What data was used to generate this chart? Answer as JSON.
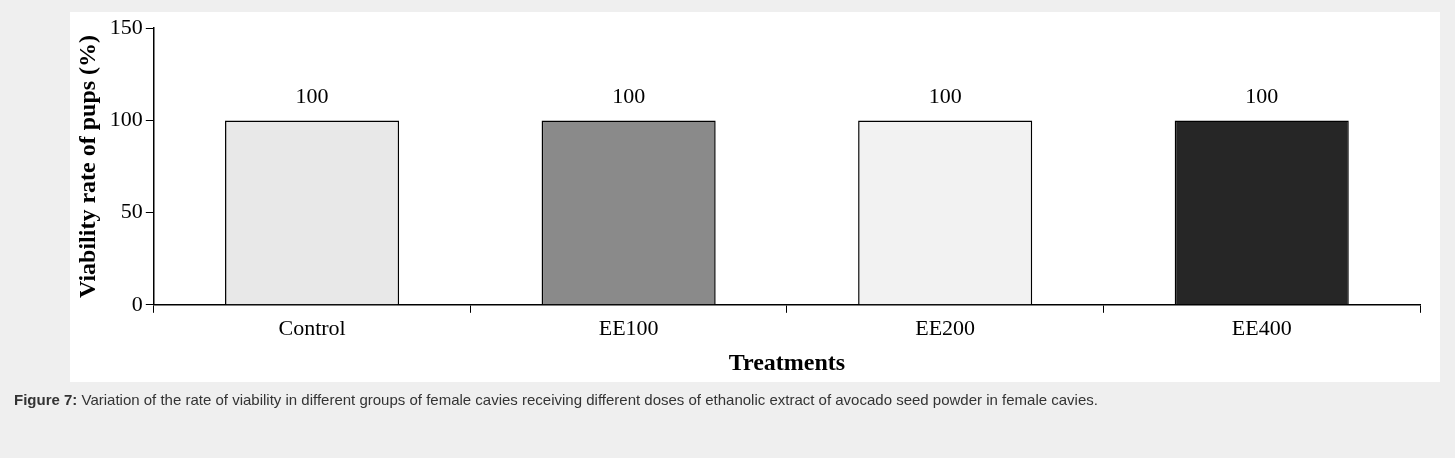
{
  "chart_data": {
    "type": "bar",
    "categories": [
      "Control",
      "EE100",
      "EE200",
      "EE400"
    ],
    "values": [
      100,
      100,
      100,
      100
    ],
    "colors": [
      "#e8e8e8",
      "#8a8a8a",
      "#f2f2f2",
      "#262626"
    ],
    "xlabel": "Treatments",
    "ylabel": "Viability rate of pups (%)",
    "ylim": [
      0,
      150
    ],
    "yticks": [
      0,
      50,
      100,
      150
    ],
    "grid": false,
    "legend": false,
    "data_labels": true,
    "annotations": [
      "Figure 7: Variation of the rate of viability in different groups of female cavies receiving different doses of ethanolic extract of avocado seed powder in female cavies."
    ]
  }
}
